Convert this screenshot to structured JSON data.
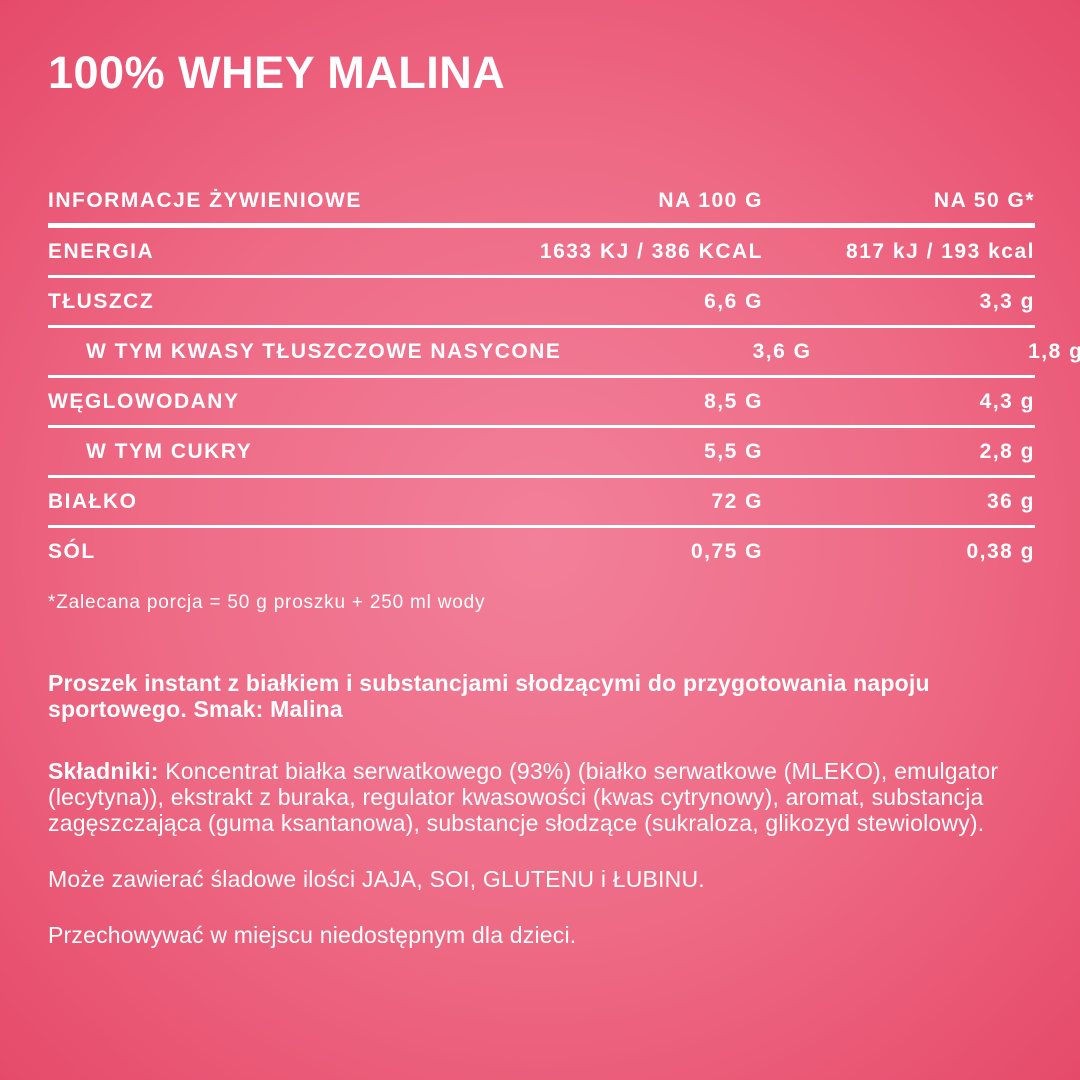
{
  "title": "100% WHEY MALINA",
  "table": {
    "header": {
      "name": "INFORMACJE ŻYWIENIOWE",
      "per100": "NA 100 G",
      "per50": "NA 50 G*"
    },
    "rows": [
      {
        "label": "ENERGIA",
        "per100": "1633 KJ / 386 KCAL",
        "per50": "817 kJ / 193 kcal",
        "indent": false
      },
      {
        "label": "TŁUSZCZ",
        "per100": "6,6 G",
        "per50": "3,3 g",
        "indent": false
      },
      {
        "label": "W TYM KWASY TŁUSZCZOWE NASYCONE",
        "per100": "3,6 G",
        "per50": "1,8 g",
        "indent": true
      },
      {
        "label": "WĘGLOWODANY",
        "per100": "8,5 G",
        "per50": "4,3 g",
        "indent": false
      },
      {
        "label": "W TYM CUKRY",
        "per100": "5,5 G",
        "per50": "2,8 g",
        "indent": true
      },
      {
        "label": "BIAŁKO",
        "per100": "72 G",
        "per50": "36 g",
        "indent": false
      },
      {
        "label": "SÓL",
        "per100": "0,75 G",
        "per50": "0,38 g",
        "indent": false
      }
    ],
    "footnote": "*Zalecana porcja = 50 g proszku + 250 ml wody"
  },
  "description": {
    "product": "Proszek instant z białkiem i substancjami słodzącymi do przygotowania napoju sportowego. Smak: Malina",
    "ingredients_label": "Składniki:",
    "ingredients": " Koncentrat białka serwatkowego (93%) (białko serwatkowe (MLEKO), emulgator (lecytyna)), ekstrakt z buraka, regulator kwasowości (kwas cytrynowy), aromat, substancja zagęszczająca (guma ksantanowa), substancje słodzące (sukraloza, glikozyd stewiolowy).",
    "allergens": "Może zawierać śladowe ilości JAJA, SOI, GLUTENU i ŁUBINU.",
    "storage": "Przechowywać w miejscu niedostępnym dla dzieci."
  },
  "colors": {
    "background_center": "#f2809a",
    "background_edge": "#e64a6a",
    "text": "#ffffff"
  }
}
